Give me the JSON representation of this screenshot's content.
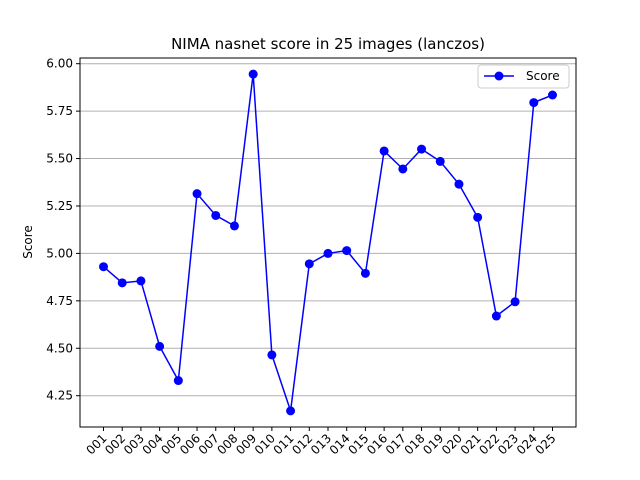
{
  "chart_data": {
    "type": "line",
    "title": "NIMA nasnet score in 25 images (lanczos)",
    "xlabel": "",
    "ylabel": "Score",
    "categories": [
      "001",
      "002",
      "003",
      "004",
      "005",
      "006",
      "007",
      "008",
      "009",
      "010",
      "011",
      "012",
      "013",
      "014",
      "015",
      "016",
      "017",
      "018",
      "019",
      "020",
      "021",
      "022",
      "023",
      "024",
      "025"
    ],
    "series": [
      {
        "name": "Score",
        "color": "#0000ff",
        "marker": "circle",
        "values": [
          4.93,
          4.845,
          4.855,
          4.51,
          4.33,
          5.315,
          5.2,
          5.145,
          5.945,
          4.465,
          4.17,
          4.945,
          5.0,
          5.015,
          4.895,
          5.54,
          5.445,
          5.55,
          5.485,
          5.365,
          5.19,
          4.67,
          4.745,
          5.795,
          5.835
        ]
      }
    ],
    "yticks": [
      "4.25",
      "4.50",
      "4.75",
      "5.00",
      "5.25",
      "5.50",
      "5.75",
      "6.00"
    ],
    "ylim": [
      4.085,
      6.03
    ],
    "grid": "y-major",
    "legend_position": "top-right"
  }
}
